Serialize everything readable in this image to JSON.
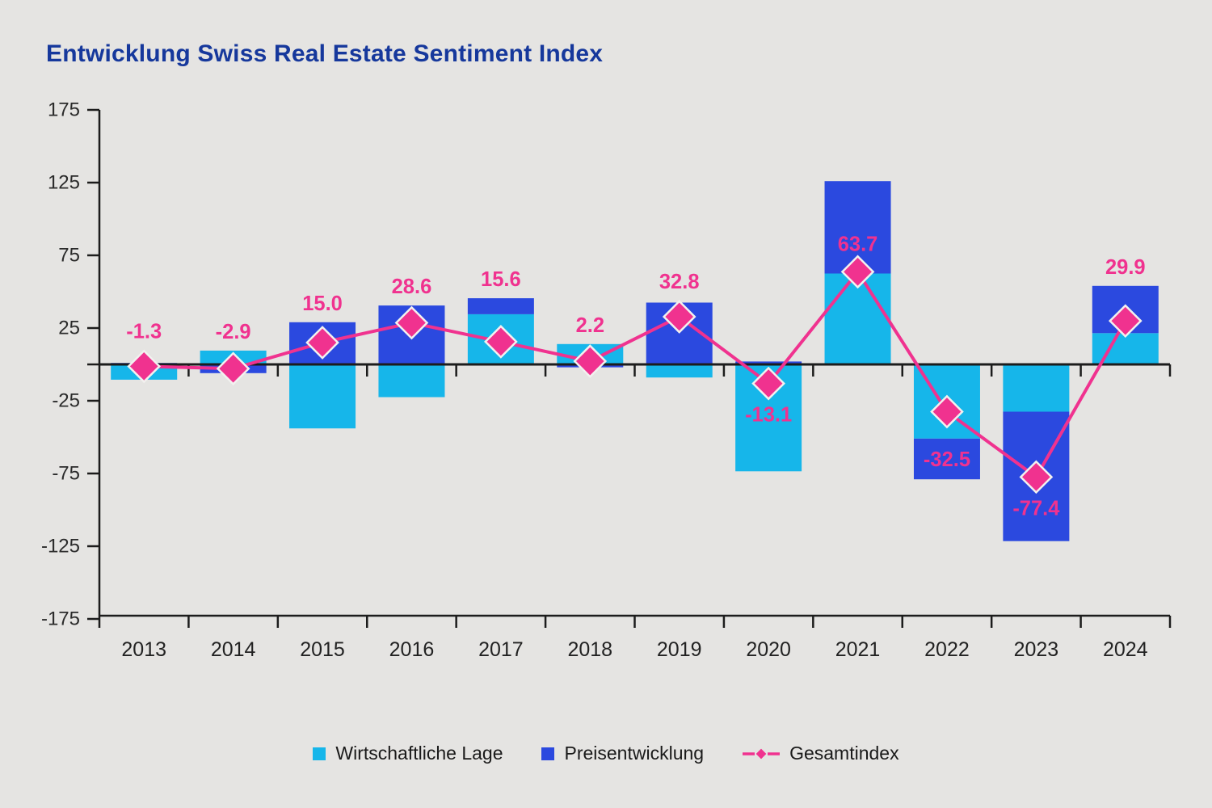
{
  "title": "Entwicklung Swiss Real Estate Sentiment Index",
  "colors": {
    "background": "#e5e4e2",
    "title_text": "#16389C",
    "economic_bar": "#16B6EA",
    "price_bar": "#2B49DF",
    "index_line": "#F0328F",
    "axis": "#1c1c1c",
    "axis_text": "#2b2b2b",
    "marker_stroke": "#f2f1ef"
  },
  "legend": {
    "items": [
      {
        "label": "Wirtschaftliche Lage"
      },
      {
        "label": "Preisentwicklung"
      },
      {
        "label": "Gesamtindex"
      }
    ]
  },
  "chart_data": {
    "type": "bar",
    "subtype": "stacked-bars-with-index-line",
    "title": "Entwicklung Swiss Real Estate Sentiment Index",
    "categories": [
      "2013",
      "2014",
      "2015",
      "2016",
      "2017",
      "2018",
      "2019",
      "2020",
      "2021",
      "2022",
      "2023",
      "2024"
    ],
    "series": [
      {
        "name": "Wirtschaftliche Lage",
        "type": "bar",
        "color": "#16B6EA",
        "values": [
          -10.5,
          9.5,
          -44,
          -22.5,
          34.5,
          14,
          -9,
          -73.5,
          62.5,
          -51,
          -32.5,
          21.5
        ]
      },
      {
        "name": "Preisentwicklung",
        "type": "bar",
        "color": "#2B49DF",
        "values": [
          1,
          -6,
          29,
          40.5,
          11,
          -2,
          42.5,
          2,
          63.5,
          -28,
          -89,
          32.5
        ]
      },
      {
        "name": "Gesamtindex",
        "type": "line",
        "marker": "diamond",
        "color": "#F0328F",
        "values": [
          -1.3,
          -2.9,
          15.0,
          28.6,
          15.6,
          2.2,
          32.8,
          -13.1,
          63.7,
          -32.5,
          -77.4,
          29.9
        ]
      }
    ],
    "value_labels": [
      "-1.3",
      "-2.9",
      "15.0",
      "28.6",
      "15.6",
      "2.2",
      "32.8",
      "-13.1",
      "63.7",
      "-32.5",
      "-77.4",
      "29.9"
    ],
    "y_ticks": [
      175,
      125,
      75,
      25,
      -25,
      -75,
      -125,
      -175
    ],
    "ylim": [
      -175,
      175
    ],
    "xlabel": "",
    "ylabel": "",
    "grid": false,
    "legend_position": "bottom"
  }
}
